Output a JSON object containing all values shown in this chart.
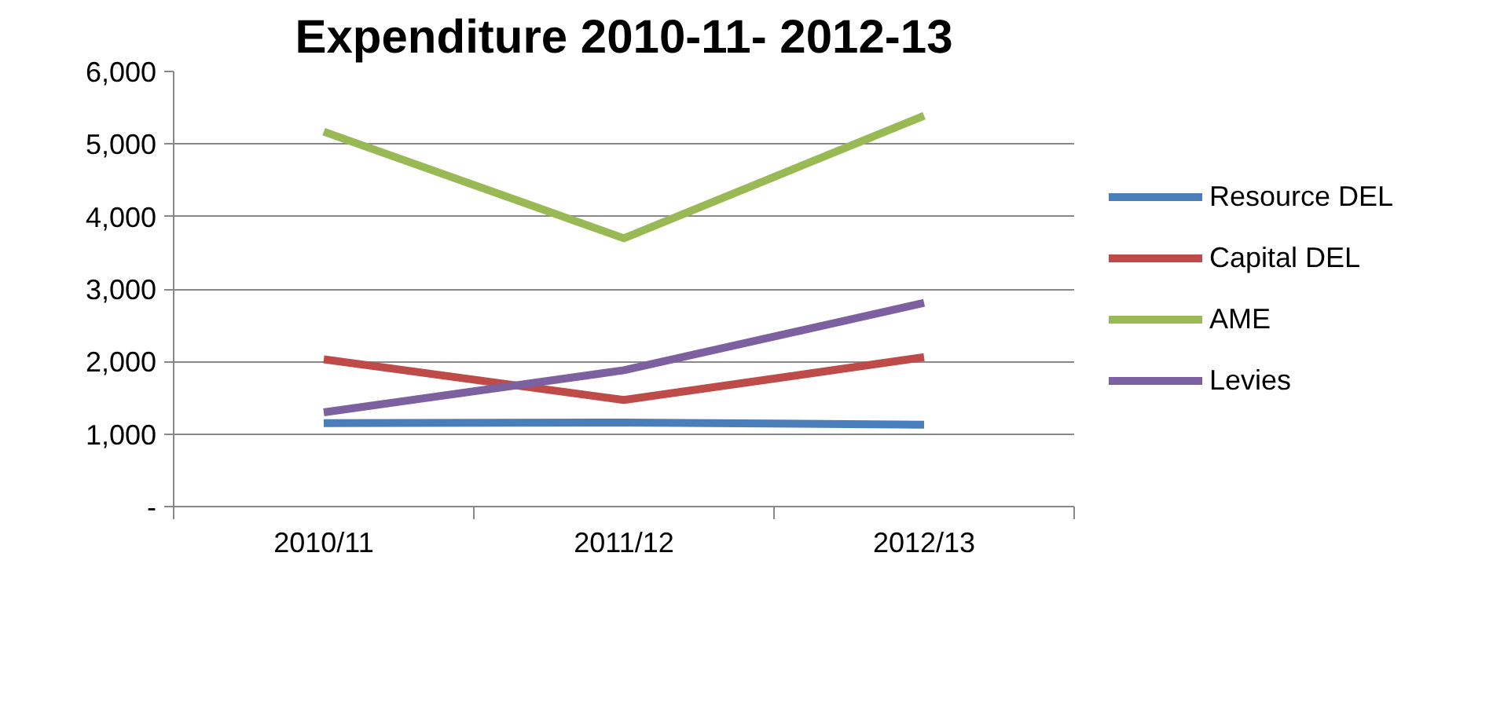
{
  "chart_data": {
    "type": "line",
    "title": "Expenditure 2010-11- 2012-13",
    "categories": [
      "2010/11",
      "2011/12",
      "2012/13"
    ],
    "series": [
      {
        "name": "Resource DEL",
        "color": "#4a7ebb",
        "values": [
          1150,
          1160,
          1130
        ]
      },
      {
        "name": "Capital DEL",
        "color": "#be4b48",
        "values": [
          2030,
          1470,
          2060
        ]
      },
      {
        "name": "AME",
        "color": "#98b954",
        "values": [
          5170,
          3700,
          5390
        ]
      },
      {
        "name": "Levies",
        "color": "#7d60a0",
        "values": [
          1300,
          1880,
          2810
        ]
      }
    ],
    "ylim": [
      0,
      6000
    ],
    "yticks": [
      {
        "value": 0,
        "label": "-"
      },
      {
        "value": 1000,
        "label": "1,000"
      },
      {
        "value": 2000,
        "label": "2,000"
      },
      {
        "value": 3000,
        "label": "3,000"
      },
      {
        "value": 4000,
        "label": "4,000"
      },
      {
        "value": 5000,
        "label": "5,000"
      },
      {
        "value": 6000,
        "label": "6,000"
      }
    ],
    "grid": "y",
    "legend": "right",
    "marker": "none",
    "line_style": "solid"
  }
}
